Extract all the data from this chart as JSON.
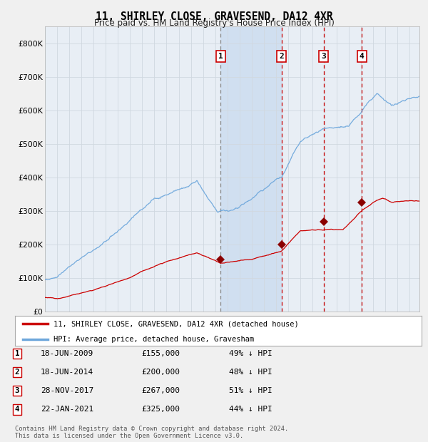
{
  "title": "11, SHIRLEY CLOSE, GRAVESEND, DA12 4XR",
  "subtitle": "Price paid vs. HM Land Registry's House Price Index (HPI)",
  "footer_line1": "Contains HM Land Registry data © Crown copyright and database right 2024.",
  "footer_line2": "This data is licensed under the Open Government Licence v3.0.",
  "legend_label_red": "11, SHIRLEY CLOSE, GRAVESEND, DA12 4XR (detached house)",
  "legend_label_blue": "HPI: Average price, detached house, Gravesham",
  "sales": [
    {
      "num": 1,
      "date": "18-JUN-2009",
      "price": 155000,
      "hpi_pct": "49%",
      "date_x": 2009.46
    },
    {
      "num": 2,
      "date": "18-JUN-2014",
      "price": 200000,
      "hpi_pct": "48%",
      "date_x": 2014.46
    },
    {
      "num": 3,
      "date": "28-NOV-2017",
      "price": 267000,
      "hpi_pct": "51%",
      "date_x": 2017.91
    },
    {
      "num": 4,
      "date": "22-JAN-2021",
      "price": 325000,
      "hpi_pct": "44%",
      "date_x": 2021.06
    }
  ],
  "hpi_color": "#6fa8dc",
  "red_color": "#cc0000",
  "sale_marker_color": "#8b0000",
  "background_color": "#f0f0f0",
  "plot_bg_color": "#e8eef5",
  "shade_color": "#ccddf0",
  "grid_color": "#d0d8e0",
  "ylim": [
    0,
    850000
  ],
  "yticks": [
    0,
    100000,
    200000,
    300000,
    400000,
    500000,
    600000,
    700000,
    800000
  ],
  "xlim_start": 1995.0,
  "xlim_end": 2025.8
}
